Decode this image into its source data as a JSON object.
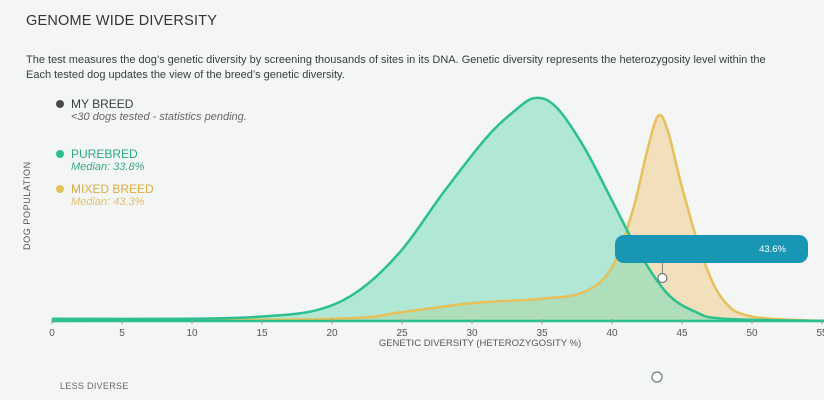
{
  "header": {
    "title": "GENOME WIDE DIVERSITY",
    "description_line1": "The test measures the dog’s genetic diversity by screening thousands of sites in its DNA. Genetic diversity represents the heterozygosity level within the",
    "description_line2": "Each tested dog updates the view of the breed’s genetic diversity."
  },
  "legend": {
    "my_breed": {
      "label": "MY BREED",
      "note": "<30 dogs tested - statistics pending.",
      "color": "#4a4a4a"
    },
    "purebred": {
      "label": "PUREBRED",
      "median": "Median: 33.8%",
      "color": "#2cbf8f"
    },
    "mixed_breed": {
      "label": "MIXED BREED",
      "median": "Median: 43.3%",
      "color": "#e6c05a"
    }
  },
  "tooltip": {
    "value": "43.6%"
  },
  "scale": {
    "left_label": "LESS DIVERSE"
  },
  "chart_data": {
    "type": "area",
    "xlabel": "GENETIC DIVERSITY (HETEROZYGOSITY %)",
    "ylabel": "DOG POPULATION",
    "xlim": [
      0,
      55
    ],
    "xticks": [
      0,
      5,
      10,
      15,
      20,
      25,
      30,
      35,
      40,
      45,
      50,
      55
    ],
    "ylim": [
      0,
      100
    ],
    "marker_x": 43.6,
    "series": [
      {
        "name": "PUREBRED",
        "color": "#2cbf8f",
        "points": [
          [
            0,
            1
          ],
          [
            10,
            1
          ],
          [
            15,
            2
          ],
          [
            19,
            5
          ],
          [
            22,
            14
          ],
          [
            25,
            32
          ],
          [
            28,
            58
          ],
          [
            31,
            82
          ],
          [
            33,
            94
          ],
          [
            34.5,
            100
          ],
          [
            36,
            96
          ],
          [
            38,
            78
          ],
          [
            40,
            54
          ],
          [
            42,
            30
          ],
          [
            44,
            12
          ],
          [
            46,
            4
          ],
          [
            48,
            1
          ],
          [
            55,
            0
          ]
        ]
      },
      {
        "name": "MIXED BREED",
        "color": "#e6c05a",
        "points": [
          [
            0,
            0
          ],
          [
            20,
            1
          ],
          [
            25,
            4
          ],
          [
            30,
            8
          ],
          [
            35,
            10
          ],
          [
            38,
            13
          ],
          [
            40,
            24
          ],
          [
            41.5,
            50
          ],
          [
            42.5,
            76
          ],
          [
            43.3,
            92
          ],
          [
            44,
            85
          ],
          [
            45,
            60
          ],
          [
            46.5,
            28
          ],
          [
            48,
            9
          ],
          [
            50,
            2
          ],
          [
            55,
            0
          ]
        ]
      }
    ]
  }
}
